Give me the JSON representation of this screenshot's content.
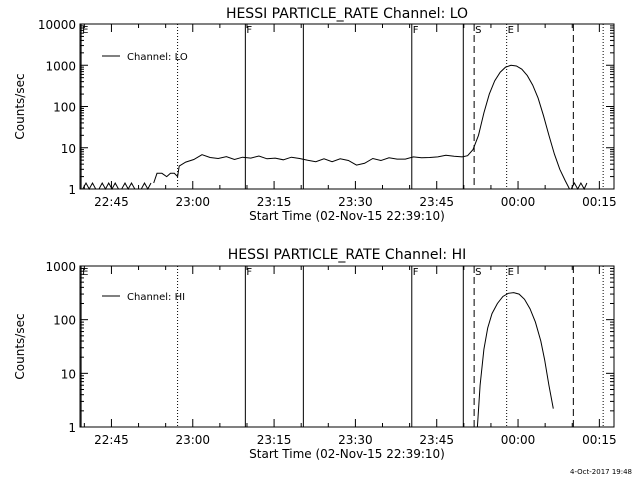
{
  "footer_date": "4-Oct-2017 19:48",
  "chart_data": [
    {
      "type": "line",
      "title": "HESSI PARTICLE_RATE Channel: LO",
      "xlabel": "Start Time (02-Nov-15 22:39:10)",
      "ylabel": "Counts/sec",
      "x_unit": "minutes after 22:39:10",
      "xlim": [
        0,
        98.5
      ],
      "ylim": [
        1,
        10000
      ],
      "yscale": "log",
      "x_ticks": [
        {
          "x": 5.8,
          "label": "22:45"
        },
        {
          "x": 20.8,
          "label": "23:00"
        },
        {
          "x": 35.8,
          "label": "23:15"
        },
        {
          "x": 50.8,
          "label": "23:30"
        },
        {
          "x": 65.8,
          "label": "23:45"
        },
        {
          "x": 80.8,
          "label": "00:00"
        },
        {
          "x": 95.8,
          "label": "00:15"
        }
      ],
      "y_ticks": [
        {
          "y": 1,
          "label": "1"
        },
        {
          "y": 10,
          "label": "10"
        },
        {
          "y": 100,
          "label": "100"
        },
        {
          "y": 1000,
          "label": "1000"
        },
        {
          "y": 10000,
          "label": "10000"
        }
      ],
      "legend": {
        "position": "top-left",
        "label": "Channel: LO"
      },
      "markers": [
        {
          "x": 0.2,
          "style": "solid",
          "label": "E"
        },
        {
          "x": 18.0,
          "style": "dotted",
          "label": ""
        },
        {
          "x": 30.5,
          "style": "solid",
          "label": "F"
        },
        {
          "x": 41.2,
          "style": "solid",
          "label": ""
        },
        {
          "x": 61.2,
          "style": "solid",
          "label": "F"
        },
        {
          "x": 70.7,
          "style": "solid",
          "label": ""
        },
        {
          "x": 72.7,
          "style": "dashed",
          "label": "S"
        },
        {
          "x": 78.7,
          "style": "dotted",
          "label": "E"
        },
        {
          "x": 91.0,
          "style": "dashed",
          "label": ""
        },
        {
          "x": 96.5,
          "style": "dotted",
          "label": ""
        }
      ],
      "noise_segment": {
        "x": [
          0.5,
          1.1,
          1.7,
          2.3,
          2.9,
          3.5,
          4.1,
          4.7,
          5.3,
          5.9,
          6.5,
          7.1,
          7.7,
          8.3,
          8.9,
          9.5,
          10.1,
          10.7,
          11.3,
          11.9,
          12.5,
          13.1
        ],
        "y": [
          1,
          1.4,
          1,
          1.4,
          1,
          1,
          1.4,
          1,
          1.4,
          1,
          1.4,
          1,
          1,
          1.4,
          1,
          1.4,
          1,
          1,
          1,
          1.4,
          1,
          1.4
        ]
      },
      "series": [
        {
          "x": [
            13.6,
            14.2,
            15.1,
            16.0,
            16.7,
            17.4,
            18.0,
            18.3,
            19.5,
            21.0,
            22.5,
            24.0,
            25.5,
            27.0,
            28.5,
            30.0,
            31.5,
            33.0,
            34.5,
            36.0,
            37.5,
            39.0,
            40.5,
            42.0,
            43.5,
            45.0,
            46.5,
            48.0,
            49.5,
            51.0,
            52.5,
            54.0,
            55.5,
            57.0,
            58.5,
            60.0,
            61.5,
            63.0,
            64.5,
            66.0,
            67.5,
            69.0,
            70.5,
            71.5,
            72.5,
            73.5,
            74.5,
            75.5,
            76.5,
            77.5,
            78.5,
            79.5,
            80.5,
            81.5,
            82.5,
            83.5,
            84.5,
            85.5,
            86.5,
            87.5,
            88.5,
            89.5,
            90.3
          ],
          "y": [
            1.4,
            2.4,
            2.4,
            2.0,
            2.4,
            2.4,
            2.0,
            3.6,
            4.5,
            5.2,
            6.8,
            5.8,
            5.5,
            6.1,
            5.2,
            5.9,
            5.6,
            6.3,
            5.4,
            5.6,
            5.1,
            5.9,
            5.5,
            5.0,
            4.6,
            5.4,
            4.6,
            5.4,
            4.9,
            3.8,
            4.2,
            5.5,
            4.9,
            5.7,
            5.3,
            5.3,
            6.0,
            5.7,
            5.8,
            6.0,
            6.6,
            6.2,
            6.0,
            6.4,
            9.0,
            20,
            70,
            200,
            420,
            680,
            900,
            1000,
            960,
            800,
            560,
            330,
            160,
            60,
            20,
            7,
            3,
            1.6,
            1.0
          ]
        }
      ],
      "tail_noise": {
        "x": [
          90.6,
          91.2,
          91.8,
          92.4,
          93.0,
          93.5
        ],
        "y": [
          1,
          1.4,
          1,
          1.4,
          1,
          1.4
        ]
      }
    },
    {
      "type": "line",
      "title": "HESSI PARTICLE_RATE Channel: HI",
      "xlabel": "Start Time (02-Nov-15 22:39:10)",
      "ylabel": "Counts/sec",
      "x_unit": "minutes after 22:39:10",
      "xlim": [
        0,
        98.5
      ],
      "ylim": [
        1,
        1000
      ],
      "yscale": "log",
      "x_ticks": [
        {
          "x": 5.8,
          "label": "22:45"
        },
        {
          "x": 20.8,
          "label": "23:00"
        },
        {
          "x": 35.8,
          "label": "23:15"
        },
        {
          "x": 50.8,
          "label": "23:30"
        },
        {
          "x": 65.8,
          "label": "23:45"
        },
        {
          "x": 80.8,
          "label": "00:00"
        },
        {
          "x": 95.8,
          "label": "00:15"
        }
      ],
      "y_ticks": [
        {
          "y": 1,
          "label": "1"
        },
        {
          "y": 10,
          "label": "10"
        },
        {
          "y": 100,
          "label": "100"
        },
        {
          "y": 1000,
          "label": "1000"
        }
      ],
      "legend": {
        "position": "top-left",
        "label": "Channel: HI"
      },
      "markers": [
        {
          "x": 0.2,
          "style": "solid",
          "label": "E"
        },
        {
          "x": 18.0,
          "style": "dotted",
          "label": ""
        },
        {
          "x": 30.5,
          "style": "solid",
          "label": "F"
        },
        {
          "x": 41.2,
          "style": "solid",
          "label": ""
        },
        {
          "x": 61.2,
          "style": "solid",
          "label": "F"
        },
        {
          "x": 70.7,
          "style": "solid",
          "label": ""
        },
        {
          "x": 72.7,
          "style": "dashed",
          "label": "S"
        },
        {
          "x": 78.7,
          "style": "dotted",
          "label": "E"
        },
        {
          "x": 91.0,
          "style": "dashed",
          "label": ""
        },
        {
          "x": 96.5,
          "style": "dotted",
          "label": ""
        }
      ],
      "series": [
        {
          "x": [
            73.3,
            73.8,
            74.5,
            75.2,
            76.0,
            77.0,
            78.0,
            79.0,
            80.0,
            81.0,
            82.0,
            83.0,
            84.0,
            85.0,
            85.7,
            86.5,
            87.3
          ],
          "y": [
            1.0,
            6,
            28,
            70,
            130,
            200,
            270,
            310,
            320,
            300,
            240,
            160,
            90,
            40,
            18,
            6,
            2.2
          ]
        }
      ]
    }
  ]
}
